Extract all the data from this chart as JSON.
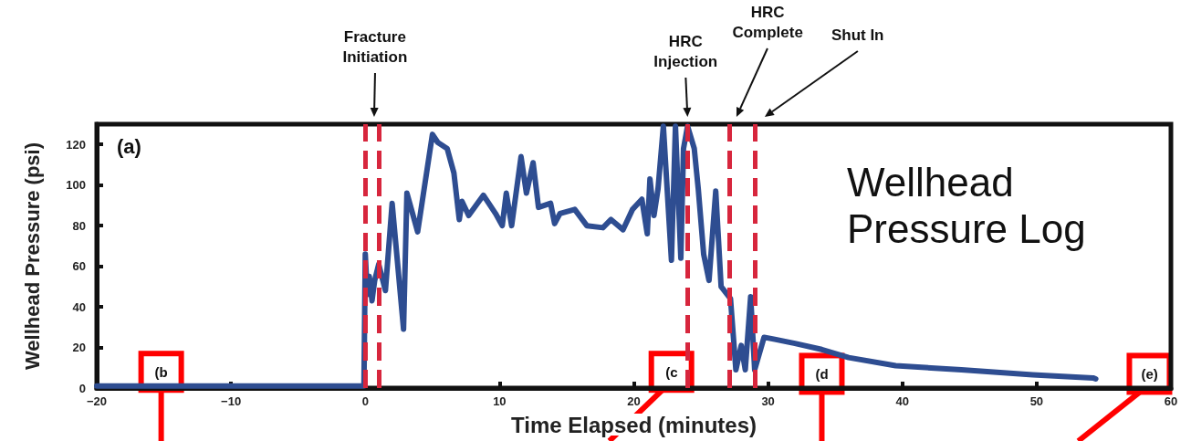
{
  "chart_data": {
    "type": "line",
    "xlabel": "Time Elapsed (minutes)",
    "ylabel": "Wellhead Pressure (psi)",
    "xlim": [
      -20,
      60
    ],
    "xticks": [
      -20,
      -10,
      0,
      10,
      20,
      30,
      40,
      50,
      60
    ],
    "ylim": [
      0,
      130
    ],
    "yticks": [
      0,
      20,
      40,
      60,
      80,
      100,
      120
    ],
    "grid": false,
    "marker": "none",
    "line_style": "solid",
    "series": [
      {
        "color": "#2e4d91",
        "x": [
          -20,
          -15,
          -10,
          -5,
          -0.1,
          0,
          0.15,
          0.3,
          0.5,
          0.7,
          1.0,
          1.5,
          2.0,
          2.85,
          3.1,
          3.9,
          5.0,
          5.4,
          6.1,
          6.6,
          7.0,
          7.2,
          7.7,
          8.8,
          9.7,
          10.2,
          10.5,
          10.9,
          11.6,
          12.0,
          12.5,
          12.9,
          13.8,
          14.1,
          14.5,
          15.6,
          16.5,
          17.7,
          18.3,
          19.2,
          19.9,
          20.6,
          21.0,
          21.2,
          21.5,
          21.8,
          22.2,
          22.8,
          23.1,
          23.5,
          23.7,
          24.0,
          24.5,
          24.8,
          25.2,
          25.6,
          26.1,
          26.5,
          27.2,
          27.6,
          28.0,
          28.3,
          28.7,
          29.0,
          29.7,
          30.5,
          32.0,
          34.0,
          36.0,
          39.5,
          44.4,
          49.7,
          54.2,
          54.4
        ],
        "values": [
          1,
          1,
          1,
          1,
          1,
          66,
          46,
          55,
          43,
          53,
          61,
          48,
          91,
          29,
          96,
          77,
          125,
          121,
          118,
          106,
          83,
          92,
          85,
          95,
          86,
          80,
          96,
          80,
          114,
          96,
          111,
          89,
          91,
          81,
          86,
          88,
          80,
          79,
          83,
          78,
          88,
          93,
          76,
          103,
          85,
          98,
          129,
          63,
          129,
          64,
          118,
          129,
          118,
          98,
          66,
          53,
          97,
          50,
          44,
          9,
          21,
          9,
          45,
          9,
          25,
          24,
          22,
          19,
          15,
          11,
          9,
          6.5,
          5,
          4.5
        ]
      }
    ],
    "ref_lines": [
      {
        "axis": "x",
        "value": 0,
        "label": null,
        "color": "#d7263d",
        "line_style": "dashed"
      },
      {
        "axis": "x",
        "value": 1,
        "label": null,
        "color": "#d7263d",
        "line_style": "dashed"
      },
      {
        "axis": "x",
        "value": 24,
        "label": null,
        "color": "#d7263d",
        "line_style": "dashed"
      },
      {
        "axis": "x",
        "value": 27.1,
        "label": null,
        "color": "#d7263d",
        "line_style": "dashed"
      },
      {
        "axis": "x",
        "value": 29,
        "label": null,
        "color": "#d7263d",
        "line_style": "dashed"
      }
    ],
    "annotations": [
      "(a)",
      "Wellhead Pressure Log",
      "Fracture Initiation",
      "HRC Injection",
      "HRC Complete",
      "Shut In",
      {
        "text": "(b",
        "x": -15.2,
        "y": 8
      },
      {
        "text": "(c",
        "x": 22.8,
        "y": 8
      },
      {
        "text": "(d",
        "x": 34,
        "y": 7
      },
      {
        "text": "(e)",
        "x": 58.4,
        "y": 7
      }
    ]
  }
}
